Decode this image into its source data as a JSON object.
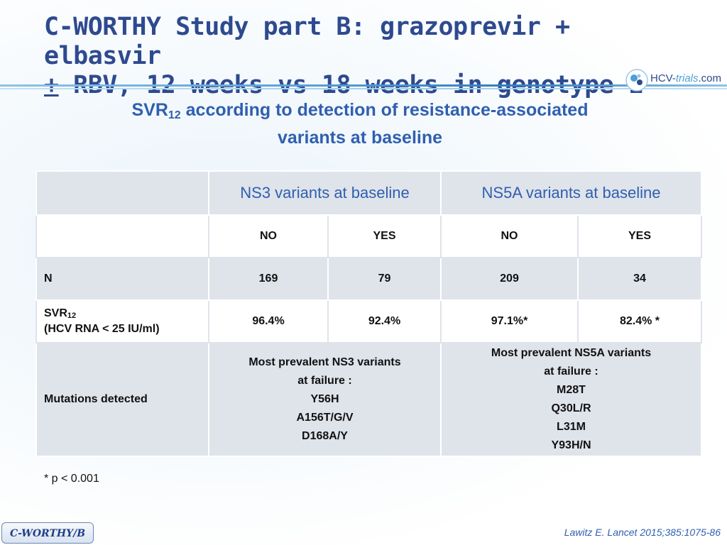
{
  "slide": {
    "title_line1": "C-WORTHY Study part B: grazoprevir + elbasvir",
    "title_pm": "+",
    "title_line2_rest": " RBV, 12 weeks vs 18 weeks in genotype 1",
    "subtitle_pre": "SVR",
    "subtitle_sub": "12",
    "subtitle_post": " according to detection of resistance-associated",
    "subtitle_line2": "variants at baseline",
    "logo_text_a": "HCV-",
    "logo_text_b": "trials",
    "logo_text_c": ".com",
    "footnote": "* p < 0.001",
    "reference": "Lawitz E. Lancet 2015;385:1075-86",
    "badge": "C-WORTHY/B"
  },
  "table": {
    "group_headers": [
      "NS3 variants at baseline",
      "NS5A variants at baseline"
    ],
    "subheaders": [
      "NO",
      "YES",
      "NO",
      "YES"
    ],
    "row_n": {
      "label": "N",
      "values": [
        "169",
        "79",
        "209",
        "34"
      ]
    },
    "row_svr": {
      "label_pre": "SVR",
      "label_sub": "12",
      "label_line2": "(HCV RNA < 25 IU/ml)",
      "values": [
        "96.4%",
        "92.4%",
        "97.1%*",
        "82.4% *"
      ]
    },
    "row_mut": {
      "label": "Mutations detected",
      "ns3": [
        "Most prevalent NS3 variants",
        "at failure :",
        "Y56H",
        "A156T/G/V",
        "D168A/Y"
      ],
      "ns5a": [
        "Most prevalent NS5A variants",
        "at failure :",
        "M28T",
        "Q30L/R",
        "L31M",
        "Y93H/N"
      ]
    }
  },
  "colors": {
    "title": "#2e4a8f",
    "subtitle": "#2f5fb0",
    "table_shade": "#dfe3ea"
  }
}
